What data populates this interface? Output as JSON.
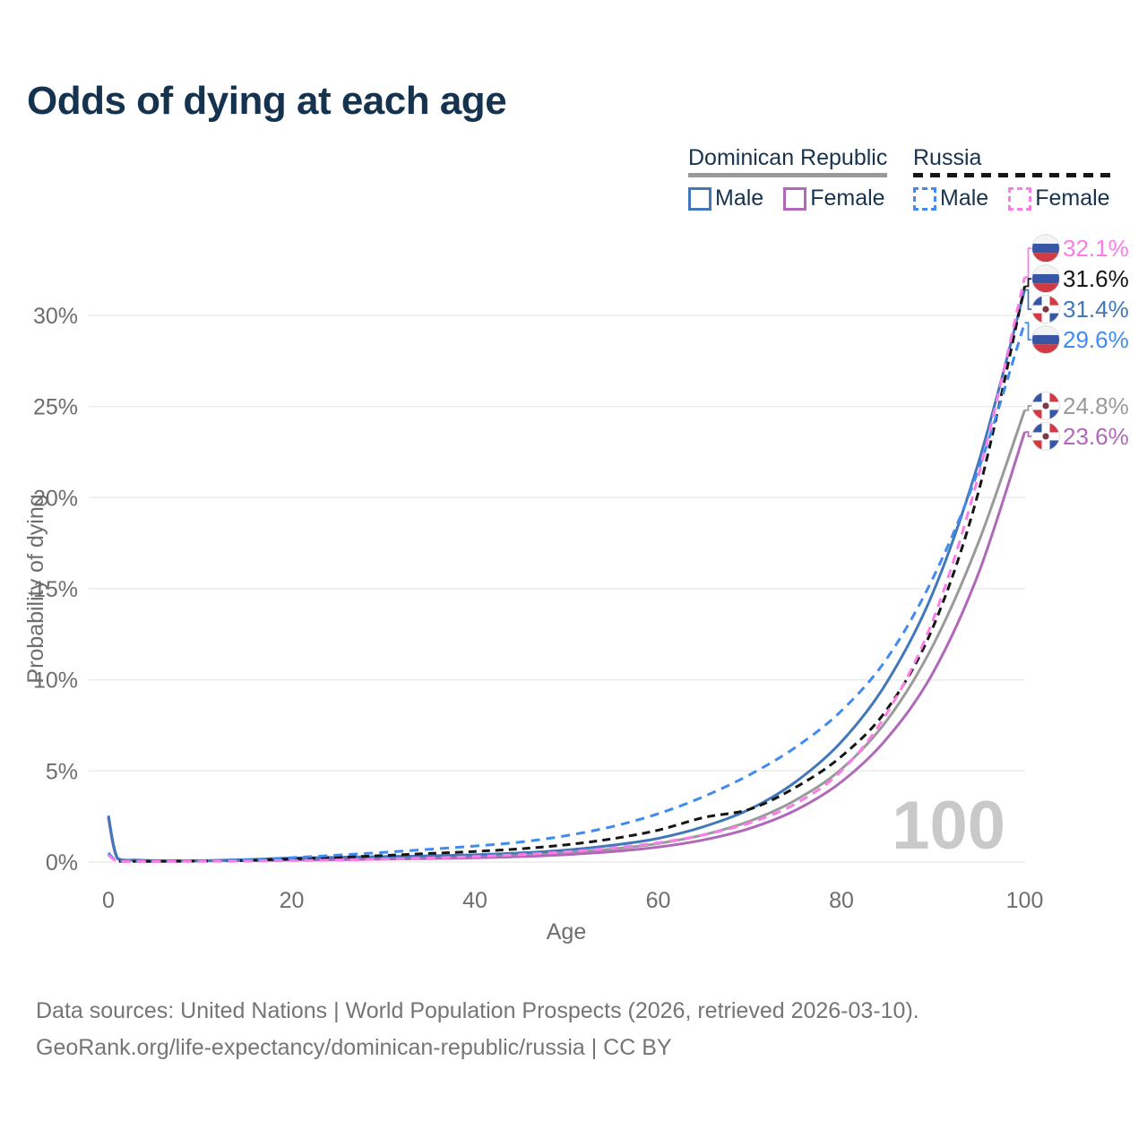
{
  "title": "Odds of dying at each age",
  "legend": {
    "dr": {
      "label": "Dominican Republic",
      "male": "Male",
      "female": "Female"
    },
    "ru": {
      "label": "Russia",
      "male": "Male",
      "female": "Female"
    }
  },
  "watermark": "100",
  "footer": {
    "line1": "Data sources: United Nations | World Population Prospects (2026, retrieved 2026-03-10).",
    "line2": "GeoRank.org/life-expectancy/dominican-republic/russia | CC BY"
  },
  "colors": {
    "title_text": "#15334f",
    "axis_text": "#6e6e6e",
    "gridline": "#ececec",
    "watermark": "#c9c9c9",
    "dr_male": "#4278b9",
    "dr_female": "#b168b9",
    "dr_avg": "#9a9a9a",
    "ru_male": "#418bf0",
    "ru_female": "#fc7de8",
    "ru_avg": "#161616",
    "flag_blue": "#3757a6",
    "flag_red": "#d03a44",
    "flag_white": "#f4f4f4"
  },
  "chart_data": {
    "type": "line",
    "title": "Odds of dying at each age",
    "xlabel": "Age",
    "ylabel": "Probability of dying",
    "xlim": [
      0,
      100
    ],
    "ylim": [
      0,
      32.5
    ],
    "x_ticks": [
      0,
      20,
      40,
      60,
      80,
      100
    ],
    "y_ticks": [
      0,
      5,
      10,
      15,
      20,
      25,
      30
    ],
    "y_tick_suffix": "%",
    "grid": "horizontal",
    "legend_position": "top-right",
    "x": [
      0,
      1,
      3,
      5,
      10,
      15,
      20,
      25,
      30,
      35,
      40,
      45,
      50,
      55,
      60,
      65,
      70,
      75,
      80,
      85,
      90,
      95,
      100
    ],
    "series": [
      {
        "id": "dr_avg",
        "name": "Dominican Republic",
        "country": "do",
        "color": "#9a9a9a",
        "dash": "solid",
        "end_label": "24.8%",
        "values": [
          2.48,
          0.2,
          0.1,
          0.07,
          0.07,
          0.11,
          0.16,
          0.19,
          0.22,
          0.26,
          0.31,
          0.39,
          0.52,
          0.72,
          1.02,
          1.5,
          2.25,
          3.4,
          5.1,
          7.8,
          11.9,
          17.6,
          24.8
        ]
      },
      {
        "id": "dr_female",
        "name": "Dominican Republic Female",
        "country": "do",
        "color": "#b168b9",
        "dash": "solid",
        "end_label": "23.6%",
        "values": [
          2.4,
          0.18,
          0.09,
          0.06,
          0.06,
          0.08,
          0.11,
          0.13,
          0.16,
          0.19,
          0.23,
          0.3,
          0.41,
          0.57,
          0.82,
          1.22,
          1.85,
          2.85,
          4.4,
          6.8,
          10.4,
          15.9,
          23.6
        ]
      },
      {
        "id": "dr_male",
        "name": "Dominican Republic Male",
        "country": "do",
        "color": "#4278b9",
        "dash": "solid",
        "end_label": "31.4%",
        "values": [
          2.55,
          0.22,
          0.11,
          0.08,
          0.08,
          0.14,
          0.22,
          0.26,
          0.3,
          0.34,
          0.4,
          0.5,
          0.66,
          0.92,
          1.3,
          1.95,
          2.9,
          4.4,
          6.6,
          9.9,
          14.8,
          22.0,
          31.4
        ]
      },
      {
        "id": "ru_avg",
        "name": "Russia",
        "country": "ru",
        "color": "#161616",
        "dash": "dashed",
        "end_label": "31.6%",
        "values": [
          0.45,
          0.05,
          0.04,
          0.04,
          0.05,
          0.09,
          0.17,
          0.26,
          0.36,
          0.47,
          0.58,
          0.73,
          0.95,
          1.28,
          1.75,
          2.45,
          2.9,
          4.1,
          5.8,
          8.4,
          12.9,
          20.4,
          31.6
        ]
      },
      {
        "id": "ru_male",
        "name": "Russia Male",
        "country": "ru",
        "color": "#418bf0",
        "dash": "dashed",
        "end_label": "29.6%",
        "values": [
          0.5,
          0.06,
          0.05,
          0.05,
          0.06,
          0.11,
          0.24,
          0.38,
          0.53,
          0.7,
          0.88,
          1.1,
          1.45,
          1.95,
          2.65,
          3.6,
          4.8,
          6.3,
          8.3,
          11.2,
          15.6,
          21.6,
          29.6
        ]
      },
      {
        "id": "ru_female",
        "name": "Russia Female",
        "country": "ru",
        "color": "#fc7de8",
        "dash": "dashed",
        "end_label": "32.1%",
        "values": [
          0.38,
          0.04,
          0.03,
          0.03,
          0.04,
          0.05,
          0.08,
          0.11,
          0.16,
          0.22,
          0.3,
          0.41,
          0.56,
          0.77,
          1.06,
          1.5,
          2.15,
          3.2,
          5.0,
          8.2,
          13.3,
          21.3,
          32.1
        ]
      }
    ]
  }
}
